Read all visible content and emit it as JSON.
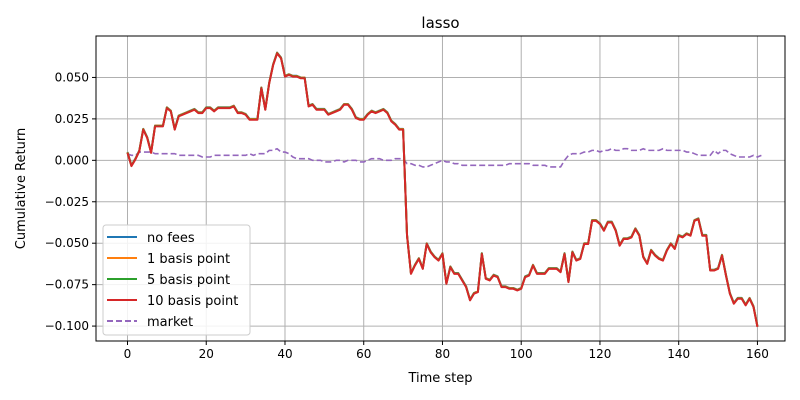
{
  "chart_data": {
    "type": "line",
    "title": "lasso",
    "xlabel": "Time step",
    "ylabel": "Cumulative Return",
    "xlim": [
      -8,
      167
    ],
    "ylim": [
      -0.109,
      0.075
    ],
    "xticks": [
      0,
      20,
      40,
      60,
      80,
      100,
      120,
      140,
      160
    ],
    "yticks": [
      -0.1,
      -0.075,
      -0.05,
      -0.025,
      0.0,
      0.025,
      0.05
    ],
    "ytick_labels": [
      "−0.100",
      "−0.075",
      "−0.050",
      "−0.025",
      "0.000",
      "0.025",
      "0.050"
    ],
    "grid": true,
    "legend_position": "lower-left",
    "x_start": 0,
    "strategy_curve": [
      0.005,
      -0.003,
      0.001,
      0.006,
      0.019,
      0.014,
      0.005,
      0.021,
      0.021,
      0.021,
      0.032,
      0.03,
      0.019,
      0.027,
      0.028,
      0.029,
      0.03,
      0.031,
      0.029,
      0.029,
      0.032,
      0.032,
      0.03,
      0.032,
      0.032,
      0.032,
      0.032,
      0.033,
      0.029,
      0.029,
      0.028,
      0.025,
      0.025,
      0.025,
      0.044,
      0.031,
      0.047,
      0.058,
      0.065,
      0.062,
      0.051,
      0.052,
      0.051,
      0.051,
      0.05,
      0.05,
      0.033,
      0.034,
      0.031,
      0.031,
      0.031,
      0.028,
      0.029,
      0.03,
      0.031,
      0.034,
      0.034,
      0.031,
      0.026,
      0.025,
      0.025,
      0.028,
      0.03,
      0.029,
      0.03,
      0.031,
      0.029,
      0.024,
      0.022,
      0.019,
      0.019,
      -0.045,
      -0.068,
      -0.063,
      -0.059,
      -0.065,
      -0.05,
      -0.055,
      -0.058,
      -0.06,
      -0.056,
      -0.074,
      -0.064,
      -0.068,
      -0.068,
      -0.072,
      -0.076,
      -0.084,
      -0.08,
      -0.079,
      -0.056,
      -0.071,
      -0.072,
      -0.069,
      -0.07,
      -0.076,
      -0.076,
      -0.077,
      -0.077,
      -0.078,
      -0.077,
      -0.07,
      -0.069,
      -0.063,
      -0.068,
      -0.068,
      -0.068,
      -0.065,
      -0.065,
      -0.065,
      -0.067,
      -0.056,
      -0.073,
      -0.055,
      -0.06,
      -0.059,
      -0.05,
      -0.05,
      -0.036,
      -0.036,
      -0.038,
      -0.042,
      -0.037,
      -0.037,
      -0.042,
      -0.051,
      -0.047,
      -0.047,
      -0.046,
      -0.041,
      -0.045,
      -0.058,
      -0.062,
      -0.054,
      -0.057,
      -0.059,
      -0.06,
      -0.054,
      -0.05,
      -0.053,
      -0.045,
      -0.046,
      -0.044,
      -0.045,
      -0.036,
      -0.035,
      -0.045,
      -0.045,
      -0.066,
      -0.066,
      -0.065,
      -0.057,
      -0.069,
      -0.08,
      -0.086,
      -0.083,
      -0.083,
      -0.087,
      -0.083,
      -0.088,
      -0.1
    ],
    "series": [
      {
        "name": "no fees",
        "color": "#1f77b4",
        "offset": 0.0,
        "dashed": false
      },
      {
        "name": "1 basis point",
        "color": "#ff7f0e",
        "offset": -0.0001,
        "dashed": false
      },
      {
        "name": "5 basis point",
        "color": "#2ca02c",
        "offset": -0.0003,
        "dashed": false
      },
      {
        "name": "10 basis point",
        "color": "#d62728",
        "offset": -0.0005,
        "dashed": false
      },
      {
        "name": "market",
        "color": "#9467bd",
        "dashed": true,
        "values": [
          0.004,
          0.003,
          0.003,
          0.005,
          0.005,
          0.005,
          0.005,
          0.004,
          0.004,
          0.004,
          0.004,
          0.004,
          0.004,
          0.003,
          0.003,
          0.003,
          0.003,
          0.003,
          0.003,
          0.002,
          0.002,
          0.002,
          0.003,
          0.003,
          0.003,
          0.003,
          0.003,
          0.003,
          0.003,
          0.003,
          0.003,
          0.004,
          0.003,
          0.004,
          0.004,
          0.004,
          0.006,
          0.006,
          0.007,
          0.005,
          0.005,
          0.004,
          0.002,
          0.001,
          0.001,
          0.001,
          0.001,
          0.0,
          0.0,
          0.0,
          -0.001,
          -0.001,
          -0.001,
          0.0,
          0.0,
          -0.001,
          0.0,
          0.0,
          0.0,
          -0.001,
          -0.001,
          0.0,
          0.001,
          0.001,
          0.001,
          0.0,
          0.0,
          0.0,
          0.001,
          0.001,
          0.001,
          -0.002,
          -0.002,
          -0.003,
          -0.003,
          -0.004,
          -0.004,
          -0.003,
          -0.002,
          -0.001,
          0.0,
          -0.001,
          -0.001,
          -0.002,
          -0.002,
          -0.003,
          -0.003,
          -0.003,
          -0.003,
          -0.003,
          -0.003,
          -0.003,
          -0.003,
          -0.003,
          -0.003,
          -0.003,
          -0.003,
          -0.002,
          -0.002,
          -0.002,
          -0.002,
          -0.002,
          -0.002,
          -0.003,
          -0.003,
          -0.003,
          -0.003,
          -0.004,
          -0.004,
          -0.004,
          -0.004,
          0.0,
          0.003,
          0.004,
          0.004,
          0.004,
          0.005,
          0.005,
          0.006,
          0.006,
          0.005,
          0.006,
          0.006,
          0.007,
          0.006,
          0.006,
          0.007,
          0.007,
          0.006,
          0.006,
          0.006,
          0.007,
          0.006,
          0.006,
          0.006,
          0.006,
          0.007,
          0.006,
          0.006,
          0.006,
          0.006,
          0.006,
          0.005,
          0.005,
          0.004,
          0.003,
          0.003,
          0.003,
          0.003,
          0.006,
          0.004,
          0.006,
          0.006,
          0.004,
          0.003,
          0.002,
          0.002,
          0.002,
          0.002,
          0.003,
          0.002,
          0.003
        ]
      }
    ]
  }
}
